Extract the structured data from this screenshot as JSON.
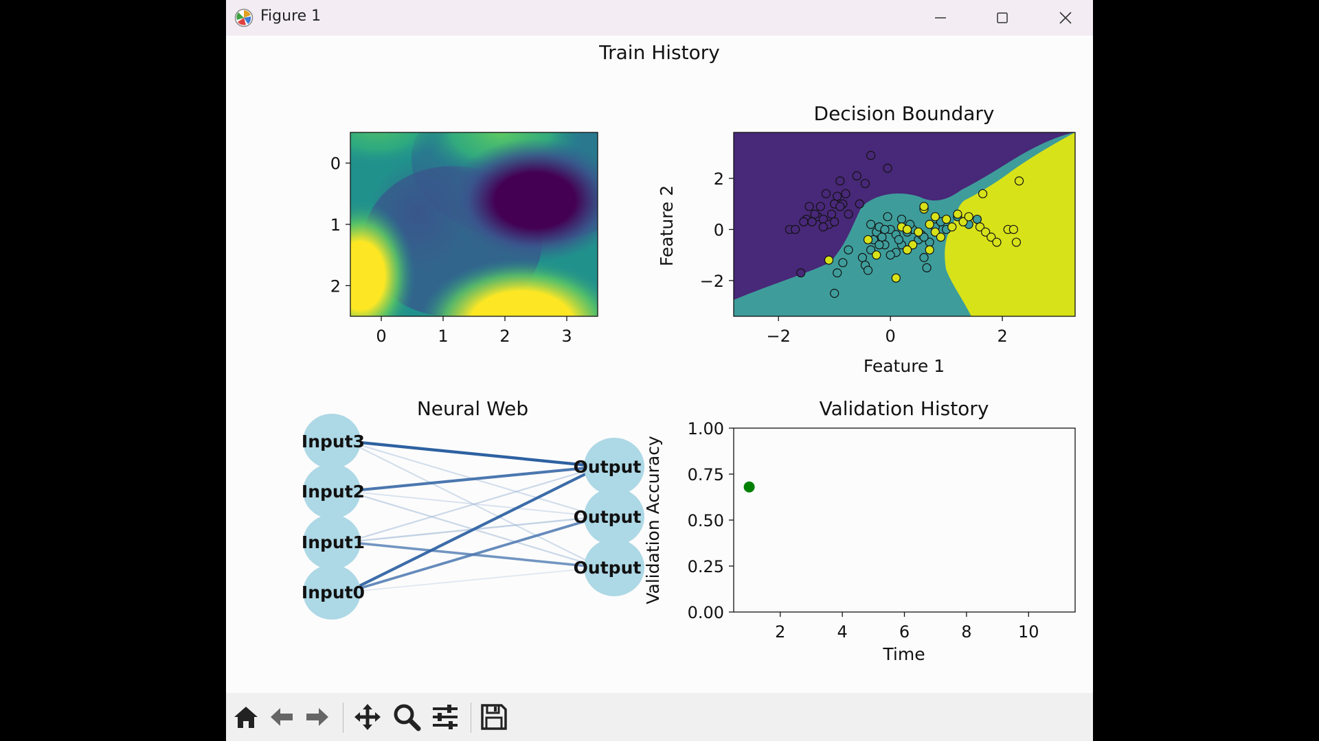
{
  "window": {
    "title": "Figure 1"
  },
  "figure": {
    "suptitle": "Train History"
  },
  "panels": {
    "heatmap": {
      "title": "",
      "xticks": [
        "0",
        "1",
        "2",
        "3"
      ],
      "yticks": [
        "0",
        "1",
        "2"
      ],
      "colormap": "viridis"
    },
    "decision": {
      "title": "Decision Boundary",
      "xlabel": "Feature 1",
      "ylabel": "Feature 2",
      "xticks": [
        "−2",
        "0",
        "2"
      ],
      "yticks": [
        "2",
        "0",
        "−2"
      ],
      "colors": {
        "class0": "#482878",
        "class1": "#3e9d9b",
        "class2": "#d8e219"
      }
    },
    "neural": {
      "title": "Neural Web",
      "inputs": [
        "Input3",
        "Input2",
        "Input1",
        "Input0"
      ],
      "outputs": [
        "Output",
        "Output",
        "Output"
      ],
      "node_color": "#add8e6"
    },
    "validation": {
      "title": "Validation History",
      "xlabel": "Time",
      "ylabel": "Validation Accuracy",
      "xticks": [
        "2",
        "4",
        "6",
        "8",
        "10"
      ],
      "yticks": [
        "1.00",
        "0.75",
        "0.50",
        "0.25",
        "0.00"
      ],
      "point_color": "#008000"
    }
  },
  "chart_data": [
    {
      "type": "heatmap",
      "title": "",
      "xlim": [
        -0.5,
        3.5
      ],
      "ylim": [
        2.5,
        -0.5
      ],
      "colormap": "viridis"
    },
    {
      "type": "scatter",
      "title": "Decision Boundary",
      "xlabel": "Feature 1",
      "ylabel": "Feature 2",
      "xlim": [
        -2.8,
        3.3
      ],
      "ylim": [
        -3.4,
        3.8
      ],
      "series": [
        {
          "class": 0,
          "color": "#482878",
          "x": [
            -1.8,
            -1.7,
            -1.6,
            -1.5,
            -1.45,
            -1.3,
            -1.2,
            -1.1,
            -1.0,
            -1.25,
            -1.15,
            -0.95,
            -0.85,
            -0.75,
            -1.05,
            -0.9,
            -0.8,
            -1.4,
            -1.35,
            -0.55,
            -0.35,
            -0.05,
            -0.45,
            -0.6,
            -1.0,
            -0.9,
            -1.55,
            -1.2
          ],
          "y": [
            0.0,
            0.0,
            -1.7,
            0.4,
            0.9,
            0.5,
            0.4,
            0.2,
            0.3,
            0.9,
            1.4,
            1.3,
            1.0,
            0.6,
            0.6,
            1.9,
            1.4,
            0.3,
            0.6,
            1.0,
            2.9,
            2.4,
            1.8,
            2.1,
            1.0,
            0.9,
            0.3,
            0.1
          ]
        },
        {
          "class": 1,
          "color": "#3e9d9b",
          "x": [
            -1.0,
            -0.95,
            -0.85,
            -0.75,
            -0.5,
            -0.45,
            -0.4,
            -0.35,
            -0.3,
            -0.25,
            -0.2,
            -0.15,
            -0.1,
            0.0,
            0.1,
            0.2,
            0.3,
            0.4,
            0.5,
            0.6,
            0.65,
            0.2,
            0.1,
            0.0,
            -0.1,
            -0.2,
            0.15,
            0.35,
            0.55,
            0.7,
            0.8,
            0.9,
            1.0,
            1.2,
            1.4,
            1.55,
            0.6,
            0.3,
            -0.05,
            -0.35
          ],
          "y": [
            -2.5,
            -1.7,
            -1.3,
            -0.8,
            -1.1,
            -1.4,
            -1.6,
            -0.8,
            -0.4,
            -0.1,
            0.1,
            -0.3,
            -0.6,
            0.0,
            -0.2,
            -0.6,
            -0.8,
            0.0,
            -0.4,
            -1.1,
            -1.5,
            0.4,
            -0.9,
            -1.0,
            0.0,
            -0.6,
            -0.4,
            0.2,
            -0.2,
            -0.5,
            0.1,
            0.3,
            0.0,
            0.5,
            0.2,
            0.4,
            -0.3,
            -0.1,
            0.5,
            0.2
          ]
        },
        {
          "class": 2,
          "color": "#d8e219",
          "x": [
            -1.1,
            -0.4,
            -0.25,
            0.1,
            0.2,
            0.3,
            0.4,
            0.5,
            0.6,
            0.7,
            0.8,
            0.9,
            1.0,
            1.1,
            1.2,
            1.3,
            1.4,
            1.6,
            1.7,
            1.8,
            1.9,
            2.1,
            2.2,
            2.25,
            0.6,
            0.8,
            0.3,
            0.7,
            1.65,
            2.3
          ],
          "y": [
            -1.2,
            -0.4,
            -1.0,
            -1.9,
            0.1,
            0.0,
            -0.6,
            -0.1,
            0.8,
            0.2,
            -0.1,
            -0.3,
            0.4,
            0.1,
            0.6,
            0.3,
            0.5,
            0.1,
            -0.1,
            -0.3,
            -0.5,
            0.0,
            0.0,
            -0.5,
            0.9,
            0.5,
            -0.8,
            -0.8,
            1.4,
            1.9
          ]
        }
      ]
    },
    {
      "type": "network",
      "title": "Neural Web",
      "nodes": [
        "Input3",
        "Input2",
        "Input1",
        "Input0",
        "Output",
        "Output",
        "Output"
      ],
      "edges": [
        {
          "from": 0,
          "to": 0,
          "weight": 0.95
        },
        {
          "from": 0,
          "to": 1,
          "weight": 0.2
        },
        {
          "from": 0,
          "to": 2,
          "weight": 0.2
        },
        {
          "from": 1,
          "to": 0,
          "weight": 0.85
        },
        {
          "from": 1,
          "to": 1,
          "weight": 0.15
        },
        {
          "from": 1,
          "to": 2,
          "weight": 0.25
        },
        {
          "from": 2,
          "to": 0,
          "weight": 0.25
        },
        {
          "from": 2,
          "to": 1,
          "weight": 0.3
        },
        {
          "from": 2,
          "to": 2,
          "weight": 0.7
        },
        {
          "from": 3,
          "to": 0,
          "weight": 0.9
        },
        {
          "from": 3,
          "to": 1,
          "weight": 0.75
        },
        {
          "from": 3,
          "to": 2,
          "weight": 0.1
        }
      ]
    },
    {
      "type": "scatter",
      "title": "Validation History",
      "xlabel": "Time",
      "ylabel": "Validation Accuracy",
      "xlim": [
        0.5,
        11.5
      ],
      "ylim": [
        0,
        1
      ],
      "series": [
        {
          "x": [
            1
          ],
          "y": [
            0.68
          ],
          "color": "#008000"
        }
      ]
    }
  ],
  "toolbar": {
    "items": [
      {
        "icon": "home-icon",
        "label": "Home"
      },
      {
        "icon": "arrow-left-icon",
        "label": "Back"
      },
      {
        "icon": "arrow-right-icon",
        "label": "Forward"
      },
      {
        "icon": "move-icon",
        "label": "Pan"
      },
      {
        "icon": "zoom-icon",
        "label": "Zoom"
      },
      {
        "icon": "sliders-icon",
        "label": "Subplots"
      },
      {
        "icon": "save-icon",
        "label": "Save"
      }
    ]
  }
}
